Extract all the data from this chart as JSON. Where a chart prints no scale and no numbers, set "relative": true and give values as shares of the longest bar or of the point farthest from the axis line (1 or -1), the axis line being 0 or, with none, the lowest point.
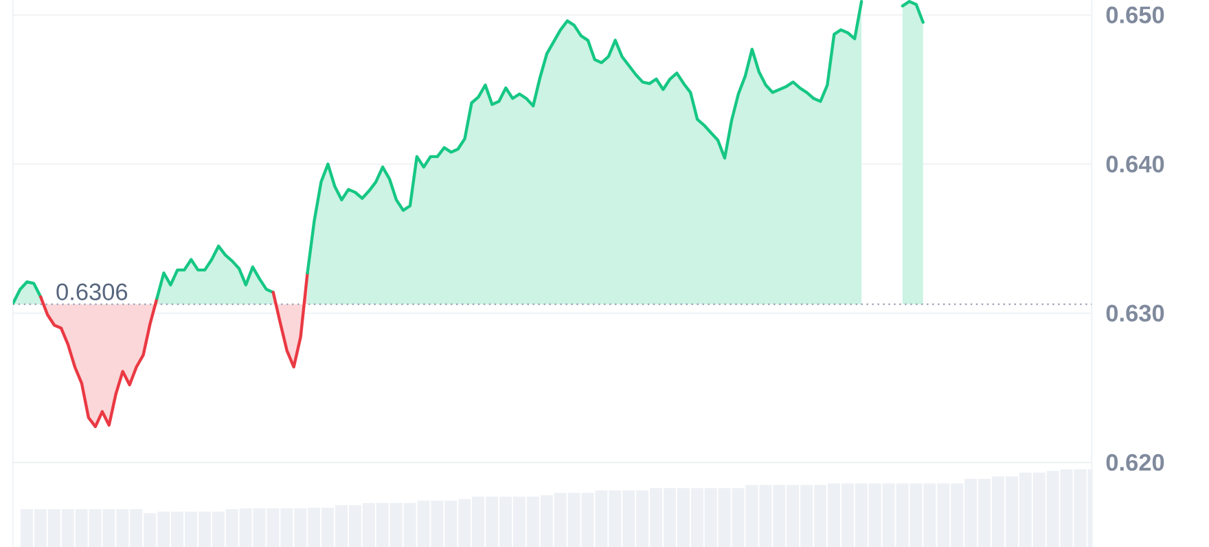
{
  "chart_data": [
    {
      "type": "area",
      "categories": [
        null,
        null,
        null,
        null,
        null,
        null,
        null,
        null,
        null,
        null,
        null,
        null,
        null,
        null,
        null,
        null,
        null,
        null,
        null,
        null,
        null,
        null,
        null,
        null,
        null,
        null,
        null,
        null,
        null,
        null,
        null,
        null,
        null,
        null,
        null,
        null,
        null,
        null,
        null,
        null,
        null,
        null,
        null,
        null,
        null,
        null,
        null,
        null,
        null,
        null,
        null,
        null,
        null,
        null,
        null,
        null,
        null,
        null,
        null,
        null,
        null,
        null,
        null,
        null,
        null,
        null,
        null,
        null,
        null,
        null,
        null,
        null,
        null,
        null,
        null,
        null,
        null,
        null,
        null,
        null,
        null,
        null,
        null,
        null,
        null,
        null,
        null,
        null,
        null,
        null,
        null,
        null,
        null,
        null,
        null,
        null,
        null,
        null,
        null,
        null,
        null,
        null,
        null,
        null,
        null,
        null,
        null,
        null,
        null,
        null,
        null,
        null,
        null,
        null,
        null,
        null,
        null,
        null,
        null,
        null,
        null,
        null,
        null,
        null,
        null,
        null,
        null,
        null,
        null,
        null,
        null,
        null,
        null,
        null,
        null,
        null,
        null,
        null,
        null,
        null,
        null,
        null,
        null,
        null,
        null,
        null,
        null,
        null,
        null,
        null,
        null,
        null,
        null,
        null,
        null,
        null,
        null,
        null
      ],
      "series": [
        {
          "color": "#16c784",
          "values": [
            0.6307,
            0.6316,
            0.6321,
            0.632,
            0.6311,
            null,
            null,
            null,
            null,
            null,
            null,
            null,
            null,
            null,
            null,
            null,
            null,
            null,
            null,
            null,
            null,
            null,
            null,
            null,
            null,
            null,
            null,
            null,
            null,
            null,
            null,
            null,
            null,
            null,
            null,
            null,
            null,
            null,
            null,
            null,
            null,
            null,
            null,
            null,
            null,
            null,
            null,
            null,
            null,
            null,
            null,
            null,
            null,
            null,
            null,
            null,
            null,
            null,
            null,
            null,
            null,
            null,
            null,
            null,
            null,
            null,
            null,
            null,
            null,
            null,
            null,
            null,
            null,
            null,
            null,
            null,
            null,
            null,
            null,
            null,
            null,
            null,
            null,
            null,
            null,
            null,
            null,
            null,
            null,
            null,
            null,
            null,
            null,
            null,
            null,
            null,
            null,
            null,
            null,
            null,
            null,
            null,
            null,
            null,
            null,
            null,
            null,
            null,
            null,
            null,
            null,
            null,
            null,
            null,
            null,
            null,
            null,
            null,
            null,
            null,
            null,
            null,
            null,
            null,
            null,
            null,
            null,
            null,
            null,
            null,
            null,
            null,
            null,
            null,
            null,
            null,
            null,
            null,
            null,
            null,
            null,
            null,
            null,
            null,
            null,
            null,
            null,
            null,
            null,
            null,
            null,
            null,
            null,
            null,
            null,
            null,
            null,
            null
          ]
        },
        {
          "color": "#ea3943",
          "values": [
            null,
            null,
            null,
            null,
            0.6311,
            0.6299,
            0.6292,
            0.629,
            0.6279,
            0.6264,
            0.6253,
            0.623,
            0.6224,
            0.6234,
            0.6225,
            0.6246,
            0.6261,
            0.6252,
            0.6264,
            0.6272,
            0.6293,
            0.631,
            null,
            null,
            null,
            null,
            null,
            null,
            null,
            null,
            null,
            null,
            null,
            null,
            null,
            null,
            null,
            null,
            null,
            null,
            null,
            null,
            null,
            null,
            null,
            null,
            null,
            null,
            null,
            null,
            null,
            null,
            null,
            null,
            null,
            null,
            null,
            null,
            null,
            null,
            null,
            null,
            null,
            null,
            null,
            null,
            null,
            null,
            null,
            null,
            null,
            null,
            null,
            null,
            null,
            null,
            null,
            null,
            null,
            null,
            null,
            null,
            null,
            null,
            null,
            null,
            null,
            null,
            null,
            null,
            null,
            null,
            null,
            null,
            null,
            null,
            null,
            null,
            null,
            null,
            null,
            null,
            null,
            null,
            null,
            null,
            null,
            null,
            null,
            null,
            null,
            null,
            null,
            null,
            null,
            null,
            null,
            null,
            null,
            null,
            null,
            null,
            null,
            null,
            null,
            null,
            null,
            null,
            null,
            null,
            null,
            null,
            null,
            null,
            null,
            null,
            null,
            null,
            null,
            null,
            null,
            null,
            null,
            null,
            null,
            null,
            null,
            null,
            null,
            null,
            null,
            null,
            null,
            null,
            null,
            null,
            null,
            null
          ]
        },
        {
          "color": "#16c784",
          "values": [
            null,
            null,
            null,
            null,
            null,
            null,
            null,
            null,
            null,
            null,
            null,
            null,
            null,
            null,
            null,
            null,
            null,
            null,
            null,
            null,
            null,
            0.631,
            0.6327,
            0.6319,
            0.6329,
            0.6329,
            0.6336,
            0.6329,
            0.6329,
            0.6336,
            0.6345,
            0.6339,
            0.6335,
            0.633,
            0.6319,
            0.6331,
            0.6323,
            0.6316,
            0.6314,
            null,
            null,
            null,
            null,
            null,
            null,
            null,
            null,
            null,
            null,
            null,
            null,
            null,
            null,
            null,
            null,
            null,
            null,
            null,
            null,
            null,
            null,
            null,
            null,
            null,
            null,
            null,
            null,
            null,
            null,
            null,
            null,
            null,
            null,
            null,
            null,
            null,
            null,
            null,
            null,
            null,
            null,
            null,
            null,
            null,
            null,
            null,
            null,
            null,
            null,
            null,
            null,
            null,
            null,
            null,
            null,
            null,
            null,
            null,
            null,
            null,
            null,
            null,
            null,
            null,
            null,
            null,
            null,
            null,
            null,
            null,
            null,
            null,
            null,
            null,
            null,
            null,
            null,
            null,
            null,
            null,
            null,
            null,
            null,
            null,
            null,
            null,
            null,
            null,
            null,
            null,
            null,
            null,
            null,
            null,
            null,
            null,
            null,
            null,
            null,
            null,
            null,
            null,
            null,
            null,
            null,
            null,
            null,
            null,
            null,
            null,
            null,
            null,
            null,
            null,
            null,
            null,
            null,
            null
          ]
        },
        {
          "color": "#ea3943",
          "values": [
            null,
            null,
            null,
            null,
            null,
            null,
            null,
            null,
            null,
            null,
            null,
            null,
            null,
            null,
            null,
            null,
            null,
            null,
            null,
            null,
            null,
            null,
            null,
            null,
            null,
            null,
            null,
            null,
            null,
            null,
            null,
            null,
            null,
            null,
            null,
            null,
            null,
            null,
            0.6314,
            0.6294,
            0.6275,
            0.6264,
            0.6284,
            0.6327,
            null,
            null,
            null,
            null,
            null,
            null,
            null,
            null,
            null,
            null,
            null,
            null,
            null,
            null,
            null,
            null,
            null,
            null,
            null,
            null,
            null,
            null,
            null,
            null,
            null,
            null,
            null,
            null,
            null,
            null,
            null,
            null,
            null,
            null,
            null,
            null,
            null,
            null,
            null,
            null,
            null,
            null,
            null,
            null,
            null,
            null,
            null,
            null,
            null,
            null,
            null,
            null,
            null,
            null,
            null,
            null,
            null,
            null,
            null,
            null,
            null,
            null,
            null,
            null,
            null,
            null,
            null,
            null,
            null,
            null,
            null,
            null,
            null,
            null,
            null,
            null,
            null,
            null,
            null,
            null,
            null,
            null,
            null,
            null,
            null,
            null,
            null,
            null,
            null,
            null,
            null,
            null,
            null,
            null,
            null,
            null,
            null,
            null,
            null,
            null,
            null,
            null,
            null,
            null,
            null,
            null,
            null,
            null,
            null,
            null,
            null,
            null,
            null,
            null
          ]
        },
        {
          "color": "#16c784",
          "values": [
            null,
            null,
            null,
            null,
            null,
            null,
            null,
            null,
            null,
            null,
            null,
            null,
            null,
            null,
            null,
            null,
            null,
            null,
            null,
            null,
            null,
            null,
            null,
            null,
            null,
            null,
            null,
            null,
            null,
            null,
            null,
            null,
            null,
            null,
            null,
            null,
            null,
            null,
            null,
            null,
            null,
            null,
            null,
            0.6327,
            0.6362,
            0.6388,
            0.64,
            0.6385,
            0.6376,
            0.6383,
            0.6381,
            0.6377,
            0.6382,
            0.6388,
            0.6398,
            0.639,
            0.6376,
            0.6369,
            0.6372,
            0.6405,
            0.6398,
            0.6405,
            0.6405,
            0.6411,
            0.6408,
            0.641,
            0.6417,
            0.6441,
            0.6445,
            0.6453,
            0.644,
            0.6442,
            0.6451,
            0.6444,
            0.6447,
            0.6444,
            0.6439,
            0.6458,
            0.6474,
            0.6482,
            0.649,
            0.6496,
            0.6493,
            0.6486,
            0.6483,
            0.647,
            0.6468,
            0.6472,
            0.6483,
            0.6472,
            0.6466,
            0.646,
            0.6455,
            0.6454,
            0.6457,
            0.645,
            0.6457,
            0.6461,
            0.6454,
            0.6448,
            0.643,
            0.6426,
            0.6421,
            0.6416,
            0.6404,
            0.6429,
            0.6447,
            0.6459,
            0.6477,
            0.6462,
            0.6453,
            0.6448,
            0.645,
            0.6452,
            0.6455,
            0.6451,
            0.6448,
            0.6444,
            0.6442,
            0.6453,
            0.6487,
            0.649,
            0.6488,
            0.6484,
            0.6509,
            null,
            null,
            null,
            null,
            null,
            null,
            null,
            null,
            null,
            null,
            null,
            null,
            null,
            null,
            null,
            null,
            null,
            null,
            null,
            null,
            null,
            null,
            null,
            null,
            null,
            null,
            null,
            null,
            null,
            null,
            null,
            null,
            null
          ]
        },
        {
          "color": "#16c784",
          "values": [
            null,
            null,
            null,
            null,
            null,
            null,
            null,
            null,
            null,
            null,
            null,
            null,
            null,
            null,
            null,
            null,
            null,
            null,
            null,
            null,
            null,
            null,
            null,
            null,
            null,
            null,
            null,
            null,
            null,
            null,
            null,
            null,
            null,
            null,
            null,
            null,
            null,
            null,
            null,
            null,
            null,
            null,
            null,
            null,
            null,
            null,
            null,
            null,
            null,
            null,
            null,
            null,
            null,
            null,
            null,
            null,
            null,
            null,
            null,
            null,
            null,
            null,
            null,
            null,
            null,
            null,
            null,
            null,
            null,
            null,
            null,
            null,
            null,
            null,
            null,
            null,
            null,
            null,
            null,
            null,
            null,
            null,
            null,
            null,
            null,
            null,
            null,
            null,
            null,
            null,
            null,
            null,
            null,
            null,
            null,
            null,
            null,
            null,
            null,
            null,
            null,
            null,
            null,
            null,
            null,
            null,
            null,
            null,
            null,
            null,
            null,
            null,
            null,
            null,
            null,
            null,
            null,
            null,
            null,
            null,
            null,
            null,
            null,
            null,
            null,
            null,
            null,
            null,
            null,
            null,
            0.6506,
            0.6509,
            0.6507,
            0.6495,
            null,
            null,
            null,
            null,
            null,
            null,
            null,
            null,
            null,
            null,
            null,
            null,
            null,
            null,
            null,
            null,
            null,
            null,
            null,
            null,
            null,
            null,
            null,
            null
          ]
        }
      ],
      "ylim": [
        0.6143,
        0.651
      ],
      "yticks": [
        {
          "value": 0.62,
          "label": "0.620"
        },
        {
          "value": 0.63,
          "label": "0.630"
        },
        {
          "value": 0.64,
          "label": "0.640"
        },
        {
          "value": 0.65,
          "label": "0.650"
        }
      ],
      "grid": "y",
      "tick_labels": "y",
      "ref_lines": [
        {
          "axis": "y",
          "value": 0.6306,
          "label": "0.6306",
          "line_style": "dotted",
          "color": "#a1a7bb"
        }
      ]
    },
    {
      "type": "bar",
      "relative": true,
      "color": "#edf0f4",
      "categories": [
        null,
        null,
        null,
        null,
        null,
        null,
        null,
        null,
        null,
        null,
        null,
        null,
        null,
        null,
        null,
        null,
        null,
        null,
        null,
        null,
        null,
        null,
        null,
        null,
        null,
        null,
        null,
        null,
        null,
        null,
        null,
        null,
        null,
        null,
        null,
        null,
        null,
        null,
        null,
        null,
        null,
        null,
        null,
        null,
        null,
        null,
        null,
        null,
        null,
        null,
        null,
        null,
        null,
        null,
        null,
        null,
        null,
        null,
        null,
        null,
        null,
        null,
        null,
        null,
        null,
        null,
        null,
        null,
        null,
        null,
        null,
        null,
        null,
        null,
        null,
        null,
        null,
        null,
        null
      ],
      "values": [
        0.49,
        0.49,
        0.49,
        0.49,
        0.49,
        0.49,
        0.49,
        0.49,
        0.49,
        0.44,
        0.46,
        0.46,
        0.46,
        0.46,
        0.46,
        0.49,
        0.5,
        0.5,
        0.5,
        0.5,
        0.5,
        0.51,
        0.51,
        0.54,
        0.54,
        0.57,
        0.57,
        0.57,
        0.57,
        0.6,
        0.6,
        0.6,
        0.62,
        0.65,
        0.65,
        0.65,
        0.65,
        0.65,
        0.67,
        0.7,
        0.7,
        0.7,
        0.73,
        0.73,
        0.73,
        0.73,
        0.76,
        0.76,
        0.76,
        0.76,
        0.76,
        0.76,
        0.76,
        0.8,
        0.8,
        0.8,
        0.8,
        0.8,
        0.8,
        0.82,
        0.82,
        0.82,
        0.82,
        0.82,
        0.82,
        0.82,
        0.82,
        0.82,
        0.82,
        0.88,
        0.88,
        0.91,
        0.91,
        0.96,
        0.96,
        0.98,
        1,
        1,
        1
      ]
    }
  ]
}
